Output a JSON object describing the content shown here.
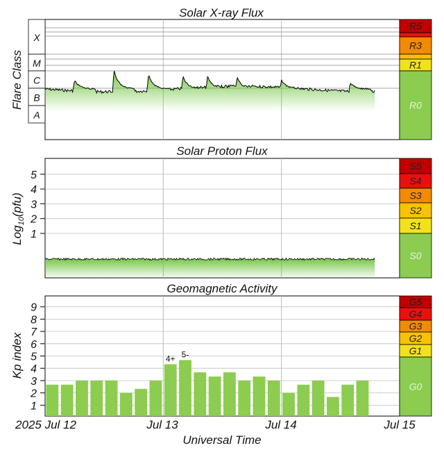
{
  "chart_data": [
    {
      "type": "area",
      "title": "Solar X-ray Flux",
      "ylabel": "Flare Class",
      "y_scale": "log",
      "class_labels": [
        "A",
        "B",
        "C",
        "M",
        "X"
      ],
      "scale_levels": [
        {
          "label": "R5",
          "color": "#c00000"
        },
        {
          "label": "R3",
          "color": "#f38a00"
        },
        {
          "label": "R1",
          "color": "#f2e21c"
        },
        {
          "label": "R0",
          "color": "#8ccc50"
        }
      ],
      "x_start": "2025-07-12",
      "x_end": "2025-07-14 19:00",
      "baseline_class": "B9",
      "peaks": [
        {
          "time": "2025-07-12 06:00",
          "class": "C3"
        },
        {
          "time": "2025-07-12 14:00",
          "class": "M1"
        },
        {
          "time": "2025-07-12 21:00",
          "class": "C6"
        },
        {
          "time": "2025-07-13 04:00",
          "class": "C5"
        },
        {
          "time": "2025-07-13 09:00",
          "class": "C5"
        },
        {
          "time": "2025-07-13 15:00",
          "class": "C4"
        },
        {
          "time": "2025-07-14 00:00",
          "class": "C3"
        },
        {
          "time": "2025-07-14 14:00",
          "class": "C2"
        }
      ]
    },
    {
      "type": "area",
      "title": "Solar Proton Flux",
      "ylabel": "Log10(pfu)",
      "ylabel_main": "Log",
      "ylabel_sub": "10",
      "ylabel_tail": "(pfu)",
      "yticks": [
        "1",
        "2",
        "3",
        "4",
        "5"
      ],
      "scale_levels": [
        {
          "label": "S5",
          "color": "#c00000"
        },
        {
          "label": "S4",
          "color": "#ea1010"
        },
        {
          "label": "S3",
          "color": "#f38a00"
        },
        {
          "label": "S2",
          "color": "#f7c200"
        },
        {
          "label": "S1",
          "color": "#f2e21c"
        },
        {
          "label": "S0",
          "color": "#8ccc50"
        }
      ],
      "level": -0.6
    },
    {
      "type": "bar",
      "title": "Geomagnetic Activity",
      "ylabel": "Kp index",
      "xlabel": "Universal Time",
      "ylim": [
        0,
        9
      ],
      "yticks": [
        "1",
        "2",
        "3",
        "4",
        "5",
        "6",
        "7",
        "8",
        "9"
      ],
      "x_ticks": [
        "2025 Jul 12",
        "Jul 13",
        "Jul 14",
        "Jul 15"
      ],
      "values": [
        2.67,
        2.67,
        3,
        3,
        3,
        2,
        2.33,
        3,
        4.33,
        4.67,
        3.67,
        3.33,
        3.67,
        3,
        3.33,
        3,
        2,
        2.67,
        3,
        1.67,
        2.67,
        3
      ],
      "bar_labels": {
        "8": "4+",
        "9": "5-"
      },
      "scale_levels": [
        {
          "label": "G5",
          "color": "#c00000"
        },
        {
          "label": "G4",
          "color": "#ea1010"
        },
        {
          "label": "G3",
          "color": "#f38a00"
        },
        {
          "label": "G2",
          "color": "#f7c200"
        },
        {
          "label": "G1",
          "color": "#f2e21c"
        },
        {
          "label": "G0",
          "color": "#8ccc50"
        }
      ]
    }
  ]
}
